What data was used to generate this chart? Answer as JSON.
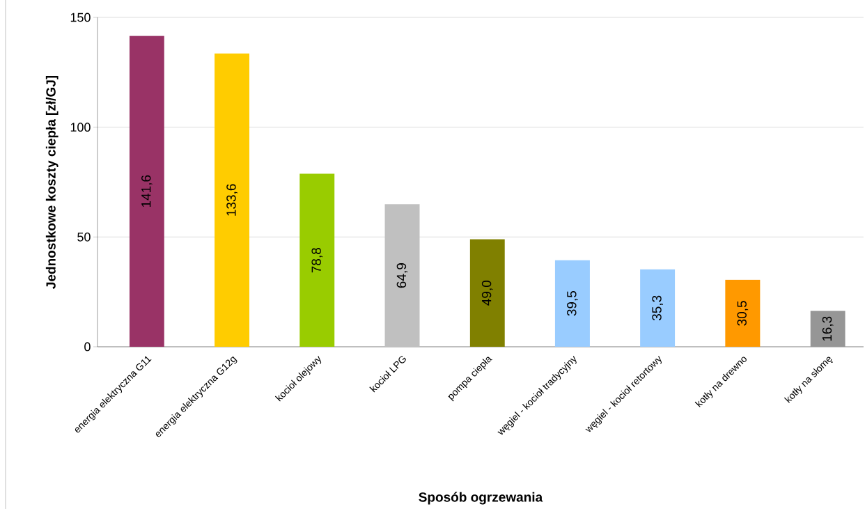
{
  "chart_data": {
    "type": "bar",
    "xlabel": "Sposób ogrzewania",
    "ylabel": "Jednostkowe koszty ciepła [zł/GJ]",
    "categories": [
      "energia elektryczna G11",
      "energia elektryczna G12g",
      "kocioł olejowy",
      "kocioł LPG",
      "pompa ciepła",
      "węgiel - kocioł tradycyjny",
      "węgiel - kocioł retortowy",
      "kotły na drewno",
      "kotły na słomę"
    ],
    "values": [
      141.6,
      133.6,
      78.8,
      64.9,
      49.0,
      39.5,
      35.3,
      30.5,
      16.3
    ],
    "value_labels": [
      "141,6",
      "133,6",
      "78,8",
      "64,9",
      "49,0",
      "39,5",
      "35,3",
      "30,5",
      "16,3"
    ],
    "colors": [
      "#993366",
      "#ffcc00",
      "#99cc00",
      "#c0c0c0",
      "#808000",
      "#99ccff",
      "#99ccff",
      "#ff9900",
      "#969696"
    ],
    "ylim": [
      0,
      150
    ],
    "yticks": [
      0,
      50,
      100,
      150
    ],
    "grid": "y"
  }
}
